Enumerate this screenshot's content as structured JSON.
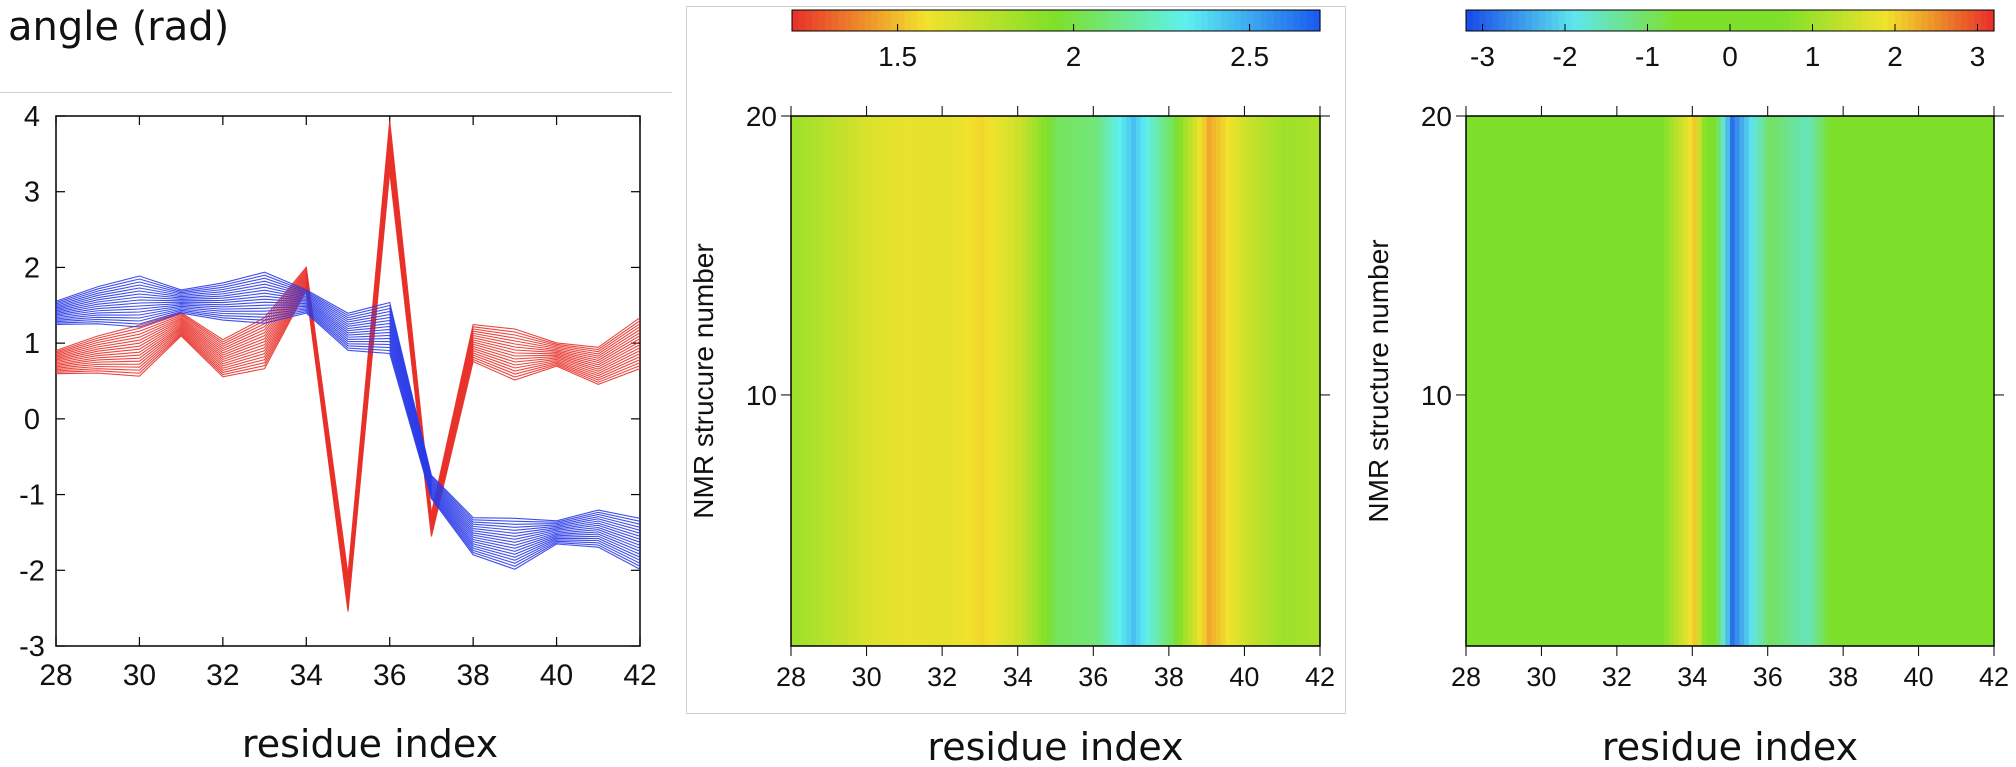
{
  "header": {
    "title": "angle (rad)"
  },
  "chart_data": [
    {
      "type": "line",
      "xlabel": "residue index",
      "ylabel": "",
      "xlim": [
        28,
        42
      ],
      "ylim": [
        -3,
        4
      ],
      "xticks": [
        28,
        30,
        32,
        34,
        36,
        38,
        40,
        42
      ],
      "yticks": [
        -3,
        -2,
        -1,
        0,
        1,
        2,
        3,
        4
      ],
      "series": [
        {
          "color": "#e8322a",
          "x": [
            28,
            29,
            30,
            31,
            32,
            33,
            34,
            35,
            36,
            37,
            38,
            39,
            40,
            41,
            42
          ],
          "y": [
            0.75,
            0.85,
            0.9,
            1.25,
            0.8,
            1.0,
            1.85,
            -2.3,
            3.6,
            -1.4,
            1.0,
            0.85,
            0.85,
            0.7,
            1.0
          ]
        },
        {
          "color": "#2a3be8",
          "x": [
            28,
            29,
            30,
            31,
            32,
            33,
            34,
            35,
            36,
            37,
            38,
            39,
            40,
            41,
            42
          ],
          "y": [
            1.4,
            1.5,
            1.55,
            1.55,
            1.55,
            1.6,
            1.55,
            1.15,
            1.2,
            -0.9,
            -1.55,
            -1.65,
            -1.5,
            -1.45,
            -1.65
          ]
        }
      ]
    },
    {
      "type": "heatmap",
      "xlabel": "residue index",
      "ylabel": "NMR strucure number",
      "xlim": [
        28,
        42
      ],
      "ylim": [
        1,
        20
      ],
      "xticks": [
        28,
        30,
        32,
        34,
        36,
        38,
        40,
        42
      ],
      "yticks": [
        10,
        20
      ],
      "colorbar": {
        "range": [
          1.2,
          2.7
        ],
        "ticks": [
          1.5,
          2,
          2.5
        ],
        "colors": [
          "#e8332a",
          "#f2e22c",
          "#7ee02a",
          "#5ef0f0",
          "#1a5ef0"
        ]
      },
      "x": [
        28,
        29,
        30,
        31,
        32,
        33,
        34,
        35,
        36,
        37,
        38,
        39,
        40,
        41,
        42
      ],
      "values": [
        1.85,
        1.75,
        1.65,
        1.6,
        1.62,
        1.55,
        1.7,
        2.05,
        2.1,
        2.45,
        2.05,
        1.45,
        1.7,
        1.85,
        1.8
      ]
    },
    {
      "type": "heatmap",
      "xlabel": "residue index",
      "ylabel": "NMR structure number",
      "xlim": [
        28,
        42
      ],
      "ylim": [
        1,
        20
      ],
      "xticks": [
        28,
        30,
        32,
        34,
        36,
        38,
        40,
        42
      ],
      "yticks": [
        10,
        20
      ],
      "colorbar": {
        "range": [
          -3.2,
          3.2
        ],
        "ticks": [
          -3,
          -2,
          -1,
          0,
          1,
          2,
          3
        ],
        "colors": [
          "#1a4ee8",
          "#5ee6ee",
          "#7ee02a",
          "#7ee02a",
          "#f2e22c",
          "#e8332a"
        ]
      },
      "x": [
        28,
        29,
        30,
        31,
        32,
        33,
        34,
        35,
        36,
        37,
        38,
        39,
        40,
        41,
        42
      ],
      "values": [
        0.0,
        0.1,
        0.3,
        0.5,
        0.2,
        0.4,
        2.1,
        -2.9,
        -1.0,
        -1.6,
        0.0,
        -0.1,
        0.0,
        0.0,
        0.0
      ]
    }
  ]
}
